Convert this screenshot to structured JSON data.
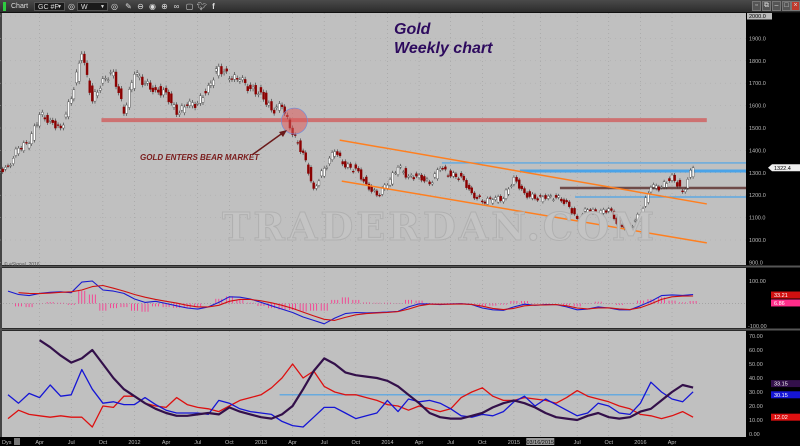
{
  "toolbar": {
    "app_label": "Chart",
    "symbol": "GC #F",
    "interval": "W",
    "icons": [
      "link-icon",
      "pencil-icon",
      "zoom-out-icon",
      "circle-icon",
      "zoom-in-icon",
      "link-chain-icon",
      "comment-icon",
      "twitter-icon",
      "facebook-icon"
    ],
    "window_controls": [
      "pin",
      "restore",
      "minimize",
      "maximize",
      "close"
    ]
  },
  "annotations": {
    "title": "Gold",
    "subtitle": "Weekly chart",
    "callout": "GOLD ENTERS BEAR MARKET",
    "watermark": "TRADERDAN.COM",
    "copyright": "© eSignal, 2016"
  },
  "colors": {
    "up": "#ffffff",
    "down": "#8b0000",
    "support": "#d06464",
    "channel": "#ff7f1f",
    "level_blue": "#4aa3e8",
    "level_brown": "#6e4a48",
    "macd": "#1a1ad0",
    "signal": "#d01010",
    "hist": "#ff2d8a",
    "adx": "#33104a",
    "plus_di": "#1515d5",
    "minus_di": "#dd1010"
  },
  "chart_data": [
    {
      "type": "candlestick",
      "panel": "price",
      "months": [
        "2011-01",
        "2011-02",
        "2011-03",
        "2011-04",
        "2011-05",
        "2011-06",
        "2011-07",
        "2011-08",
        "2011-09",
        "2011-10",
        "2011-11",
        "2011-12",
        "2012-01",
        "2012-02",
        "2012-03",
        "2012-04",
        "2012-05",
        "2012-06",
        "2012-07",
        "2012-08",
        "2012-09",
        "2012-10",
        "2012-11",
        "2012-12",
        "2013-01",
        "2013-02",
        "2013-03",
        "2013-04",
        "2013-05",
        "2013-06",
        "2013-07",
        "2013-08",
        "2013-09",
        "2013-10",
        "2013-11",
        "2013-12",
        "2014-01",
        "2014-02",
        "2014-03",
        "2014-04",
        "2014-05",
        "2014-06",
        "2014-07",
        "2014-08",
        "2014-09",
        "2014-10",
        "2014-11",
        "2014-12",
        "2015-01",
        "2015-02",
        "2015-03",
        "2015-04",
        "2015-05",
        "2015-06",
        "2015-07",
        "2015-08",
        "2015-09",
        "2015-10",
        "2015-11",
        "2015-12",
        "2016-01",
        "2016-02",
        "2016-03",
        "2016-04",
        "2016-05",
        "2016-06"
      ],
      "close": [
        1330,
        1410,
        1430,
        1560,
        1535,
        1500,
        1630,
        1830,
        1620,
        1720,
        1750,
        1565,
        1740,
        1700,
        1670,
        1660,
        1560,
        1600,
        1610,
        1690,
        1775,
        1720,
        1715,
        1675,
        1660,
        1580,
        1595,
        1470,
        1390,
        1230,
        1320,
        1395,
        1325,
        1320,
        1250,
        1200,
        1245,
        1325,
        1285,
        1290,
        1250,
        1320,
        1285,
        1285,
        1210,
        1170,
        1180,
        1185,
        1280,
        1210,
        1185,
        1185,
        1190,
        1170,
        1095,
        1135,
        1115,
        1140,
        1065,
        1060,
        1115,
        1235,
        1235,
        1290,
        1215,
        1322.4
      ],
      "ylim": [
        880,
        2010
      ],
      "yticks": [
        2000,
        1900,
        1800,
        1700,
        1600,
        1500,
        1400,
        1300,
        1200,
        1100,
        1000,
        900
      ],
      "ytick_labels": [
        "2000.0",
        "1900.0",
        "1800.0",
        "1700.0",
        "1600.0",
        "1500.0",
        "1400.0",
        "1300.0",
        "1200.0",
        "1100.0",
        "1000.0",
        "900.0"
      ],
      "last_label": "1322.4",
      "top_label": "2000.0",
      "drawings": {
        "support": {
          "price": 1535,
          "from": "2011-09-27",
          "to": "2016-07-10"
        },
        "bear_circle": {
          "date": "2013-04-06",
          "price": 1531
        },
        "channel_upper": [
          [
            "2013-08-15",
            1446
          ],
          [
            "2016-07-10",
            1161
          ]
        ],
        "channel_lower": [
          [
            "2013-08-21",
            1263
          ],
          [
            "2016-07-10",
            987
          ]
        ],
        "levels": [
          {
            "price": 1344,
            "from": "2014-06-06",
            "color": "level_blue",
            "w": 1.2
          },
          {
            "price": 1308,
            "from": "2015-01-18",
            "color": "level_blue",
            "w": 3
          },
          {
            "price": 1232,
            "from": "2015-05-12",
            "color": "level_brown",
            "w": 2.5
          },
          {
            "price": 1192,
            "from": "2015-06-25",
            "color": "level_blue",
            "w": 1.2
          }
        ]
      }
    },
    {
      "type": "line",
      "panel": "macd",
      "ylim": [
        -100,
        100
      ],
      "ytick_labels": [
        "100.00",
        "-100.00"
      ],
      "series": [
        {
          "key": "macd",
          "values": [
            55,
            40,
            35,
            45,
            50,
            52,
            48,
            95,
            100,
            60,
            55,
            45,
            20,
            5,
            10,
            0,
            -10,
            -20,
            -25,
            -15,
            5,
            30,
            28,
            20,
            5,
            -10,
            -25,
            -40,
            -60,
            -75,
            -90,
            -65,
            -45,
            -40,
            -42,
            -40,
            -38,
            -35,
            -15,
            -2,
            -2,
            -5,
            -2,
            -1,
            -5,
            -20,
            -28,
            -30,
            -15,
            -3,
            -8,
            -5,
            -5,
            -15,
            -28,
            -25,
            -15,
            -20,
            -28,
            -28,
            -10,
            10,
            35,
            38,
            36,
            40.07
          ]
        },
        {
          "key": "signal",
          "values": [
            null,
            48,
            45,
            44,
            46,
            50,
            52,
            60,
            75,
            80,
            68,
            55,
            40,
            28,
            18,
            10,
            2,
            -8,
            -15,
            -15,
            -8,
            10,
            18,
            18,
            12,
            3,
            -8,
            -22,
            -38,
            -55,
            -70,
            -75,
            -62,
            -50,
            -45,
            -42,
            -40,
            -36,
            -25,
            -10,
            -3,
            -3,
            -3,
            -2,
            -4,
            -12,
            -22,
            -27,
            -22,
            -10,
            -7,
            -6,
            -5,
            -10,
            -20,
            -24,
            -20,
            -19,
            -24,
            -27,
            -18,
            -2,
            18,
            30,
            33,
            33.21
          ]
        }
      ],
      "labels": {
        "signal": "33.21",
        "hist": "6.86"
      }
    },
    {
      "type": "line",
      "panel": "dmi",
      "ylim": [
        0,
        72
      ],
      "yticks": [
        70,
        60,
        50,
        40,
        30,
        20,
        10,
        0
      ],
      "ytick_labels": [
        "70.00",
        "60.00",
        "50.00",
        "40.00",
        "30.00",
        "20.00",
        "10.00",
        "0.00"
      ],
      "series": [
        {
          "key": "adx",
          "values": [
            null,
            null,
            null,
            67,
            62,
            56,
            51,
            54,
            60,
            50,
            40,
            32,
            27,
            22,
            18,
            15,
            13,
            13,
            14,
            15,
            14,
            19,
            16,
            14,
            12,
            11,
            14,
            20,
            32,
            45,
            54,
            50,
            44,
            42,
            41,
            40,
            38,
            34,
            28,
            22,
            15,
            12,
            11,
            11,
            13,
            15,
            19,
            22,
            24,
            22,
            19,
            15,
            12,
            11,
            10,
            13,
            15,
            12,
            11,
            12,
            16,
            18,
            24,
            30,
            35,
            33.15
          ]
        },
        {
          "key": "plus_di",
          "values": [
            28,
            22,
            29,
            26,
            35,
            27,
            28,
            46,
            32,
            22,
            23,
            21,
            21,
            26,
            21,
            17,
            15,
            15,
            15,
            14,
            24,
            22,
            18,
            16,
            15,
            14,
            9,
            6,
            5,
            12,
            19,
            19,
            15,
            11,
            13,
            15,
            24,
            16,
            25,
            23,
            24,
            22,
            18,
            13,
            12,
            14,
            13,
            16,
            23,
            27,
            20,
            25,
            21,
            17,
            13,
            15,
            22,
            20,
            15,
            14,
            22,
            37,
            30,
            25,
            23,
            30.15
          ]
        },
        {
          "key": "minus_di",
          "values": [
            11,
            17,
            14,
            13,
            12,
            13,
            12,
            12,
            5,
            20,
            19,
            27,
            27,
            22,
            20,
            19,
            26,
            21,
            19,
            18,
            16,
            20,
            24,
            26,
            28,
            33,
            40,
            50,
            40,
            45,
            34,
            30,
            28,
            28,
            26,
            24,
            21,
            20,
            17,
            20,
            18,
            16,
            18,
            26,
            30,
            33,
            27,
            24,
            24,
            26,
            25,
            24,
            22,
            26,
            31,
            27,
            25,
            23,
            20,
            18,
            14,
            13,
            11,
            13,
            16,
            12.02
          ]
        }
      ],
      "level": {
        "value": 28,
        "from": "2013-02-24",
        "to": "2016-01-28"
      },
      "labels": {
        "adx": "33.15",
        "plus_di": "30.15",
        "minus_di": "12.02"
      }
    }
  ],
  "xaxis": {
    "corner_label": "Dys",
    "ticks": [
      {
        "date": "2011-04-01",
        "label": "Apr"
      },
      {
        "date": "2011-07-01",
        "label": "Jul"
      },
      {
        "date": "2011-10-01",
        "label": "Oct"
      },
      {
        "date": "2012-01-01",
        "label": "2012"
      },
      {
        "date": "2012-04-01",
        "label": "Apr"
      },
      {
        "date": "2012-07-01",
        "label": "Jul"
      },
      {
        "date": "2012-10-01",
        "label": "Oct"
      },
      {
        "date": "2013-01-01",
        "label": "2013"
      },
      {
        "date": "2013-04-01",
        "label": "Apr"
      },
      {
        "date": "2013-07-01",
        "label": "Jul"
      },
      {
        "date": "2013-10-01",
        "label": "Oct"
      },
      {
        "date": "2014-01-01",
        "label": "2014"
      },
      {
        "date": "2014-04-01",
        "label": "Apr"
      },
      {
        "date": "2014-07-01",
        "label": "Jul"
      },
      {
        "date": "2014-10-01",
        "label": "Oct"
      },
      {
        "date": "2015-01-01",
        "label": "2015"
      },
      {
        "date": "2015-03-16",
        "label": "03/16/2015",
        "cursor": true
      },
      {
        "date": "2015-07-01",
        "label": "Jul"
      },
      {
        "date": "2015-10-01",
        "label": "Oct"
      },
      {
        "date": "2016-01-01",
        "label": "2016"
      },
      {
        "date": "2016-04-01",
        "label": "Apr"
      }
    ]
  }
}
